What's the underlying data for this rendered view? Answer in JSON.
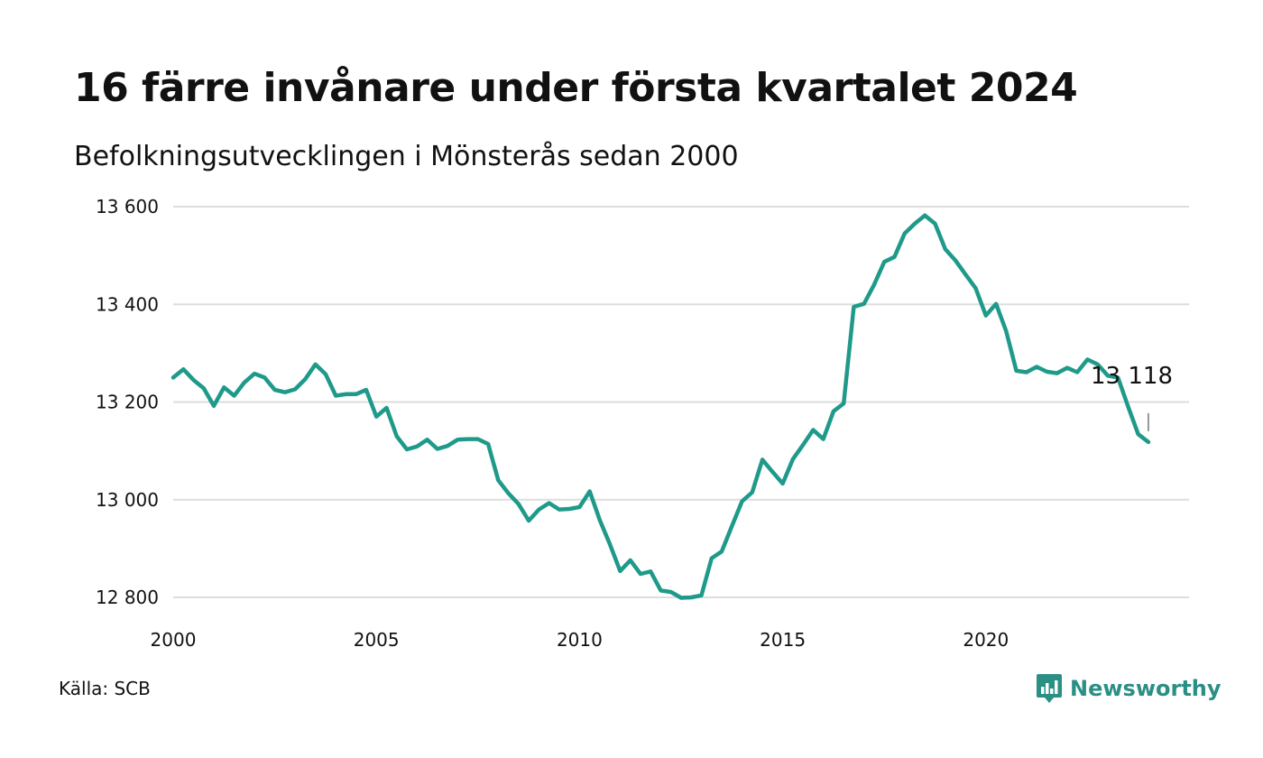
{
  "title": "16 färre invånare under första kvartalet 2024",
  "subtitle": "Befolkningsutvecklingen i Mönsterås sedan 2000",
  "source": "Källa: SCB",
  "brand": {
    "name": "Newsworthy",
    "logo_icon": "newsworthy-chart-bubble-icon",
    "color": "#2a8f84"
  },
  "colors": {
    "line": "#1f9a8a",
    "grid": "#dddddd",
    "text": "#111111"
  },
  "chart_data": {
    "type": "line",
    "title": "16 färre invånare under första kvartalet 2024",
    "subtitle": "Befolkningsutvecklingen i Mönsterås sedan 2000",
    "xlabel": "",
    "ylabel": "",
    "xlim": [
      2000,
      2024.25
    ],
    "ylim": [
      12800,
      13600
    ],
    "x_ticks": [
      2000,
      2005,
      2010,
      2015,
      2020
    ],
    "x_tick_labels": [
      "2000",
      "2005",
      "2010",
      "2015",
      "2020"
    ],
    "y_ticks": [
      12800,
      13000,
      13200,
      13400,
      13600
    ],
    "y_tick_labels": [
      "12 800",
      "13 000",
      "13 200",
      "13 400",
      "13 600"
    ],
    "grid": true,
    "end_label": "13 118",
    "series": [
      {
        "color": "#1f9a8a",
        "points": [
          [
            2000.0,
            13250
          ],
          [
            2000.25,
            13267
          ],
          [
            2000.5,
            13245
          ],
          [
            2000.75,
            13228
          ],
          [
            2001.0,
            13192
          ],
          [
            2001.25,
            13230
          ],
          [
            2001.5,
            13213
          ],
          [
            2001.75,
            13240
          ],
          [
            2002.0,
            13258
          ],
          [
            2002.25,
            13250
          ],
          [
            2002.5,
            13225
          ],
          [
            2002.75,
            13220
          ],
          [
            2003.0,
            13226
          ],
          [
            2003.25,
            13247
          ],
          [
            2003.5,
            13277
          ],
          [
            2003.75,
            13257
          ],
          [
            2004.0,
            13213
          ],
          [
            2004.25,
            13216
          ],
          [
            2004.5,
            13216
          ],
          [
            2004.75,
            13225
          ],
          [
            2005.0,
            13170
          ],
          [
            2005.25,
            13188
          ],
          [
            2005.5,
            13130
          ],
          [
            2005.75,
            13103
          ],
          [
            2006.0,
            13109
          ],
          [
            2006.25,
            13123
          ],
          [
            2006.5,
            13104
          ],
          [
            2006.75,
            13110
          ],
          [
            2007.0,
            13123
          ],
          [
            2007.25,
            13124
          ],
          [
            2007.5,
            13124
          ],
          [
            2007.75,
            13114
          ],
          [
            2008.0,
            13040
          ],
          [
            2008.25,
            13013
          ],
          [
            2008.5,
            12991
          ],
          [
            2008.75,
            12957
          ],
          [
            2009.0,
            12980
          ],
          [
            2009.25,
            12993
          ],
          [
            2009.5,
            12980
          ],
          [
            2009.75,
            12981
          ],
          [
            2010.0,
            12985
          ],
          [
            2010.25,
            13017
          ],
          [
            2010.5,
            12958
          ],
          [
            2010.75,
            12908
          ],
          [
            2011.0,
            12854
          ],
          [
            2011.25,
            12876
          ],
          [
            2011.5,
            12848
          ],
          [
            2011.75,
            12853
          ],
          [
            2012.0,
            12814
          ],
          [
            2012.25,
            12811
          ],
          [
            2012.5,
            12799
          ],
          [
            2012.75,
            12800
          ],
          [
            2013.0,
            12804
          ],
          [
            2013.25,
            12880
          ],
          [
            2013.5,
            12894
          ],
          [
            2013.75,
            12946
          ],
          [
            2014.0,
            12997
          ],
          [
            2014.25,
            13015
          ],
          [
            2014.5,
            13082
          ],
          [
            2014.75,
            13057
          ],
          [
            2015.0,
            13033
          ],
          [
            2015.25,
            13083
          ],
          [
            2015.5,
            13112
          ],
          [
            2015.75,
            13143
          ],
          [
            2016.0,
            13124
          ],
          [
            2016.25,
            13181
          ],
          [
            2016.5,
            13197
          ],
          [
            2016.75,
            13395
          ],
          [
            2017.0,
            13401
          ],
          [
            2017.25,
            13440
          ],
          [
            2017.5,
            13487
          ],
          [
            2017.75,
            13497
          ],
          [
            2018.0,
            13545
          ],
          [
            2018.25,
            13565
          ],
          [
            2018.5,
            13582
          ],
          [
            2018.75,
            13565
          ],
          [
            2019.0,
            13513
          ],
          [
            2019.25,
            13490
          ],
          [
            2019.5,
            13461
          ],
          [
            2019.75,
            13433
          ],
          [
            2020.0,
            13377
          ],
          [
            2020.25,
            13401
          ],
          [
            2020.5,
            13345
          ],
          [
            2020.75,
            13264
          ],
          [
            2021.0,
            13261
          ],
          [
            2021.25,
            13272
          ],
          [
            2021.5,
            13262
          ],
          [
            2021.75,
            13259
          ],
          [
            2022.0,
            13270
          ],
          [
            2022.25,
            13261
          ],
          [
            2022.5,
            13287
          ],
          [
            2022.75,
            13277
          ],
          [
            2023.0,
            13254
          ],
          [
            2023.25,
            13250
          ],
          [
            2023.5,
            13191
          ],
          [
            2023.75,
            13134
          ],
          [
            2024.0,
            13118
          ]
        ]
      }
    ]
  }
}
